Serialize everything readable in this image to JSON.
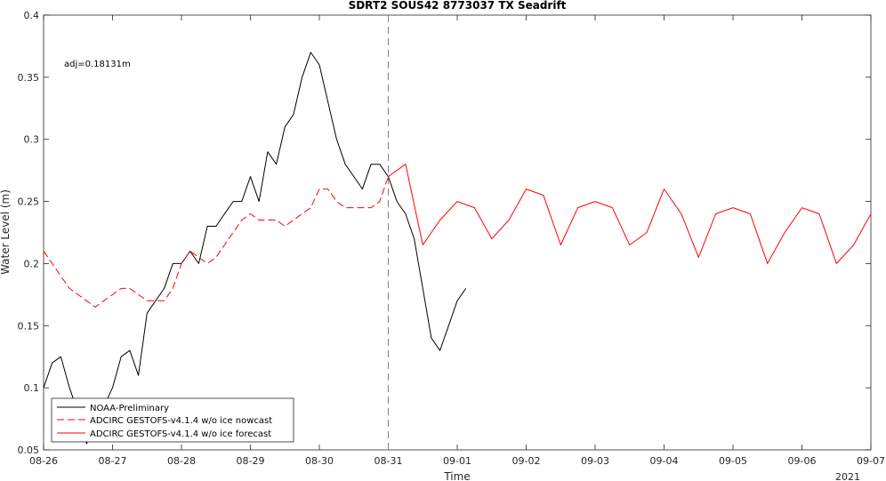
{
  "chart_data": {
    "type": "line",
    "title": "SDRT2 SOUS42 8773037 TX Seadrift",
    "xlabel": "Time",
    "ylabel": "Water Level (m)",
    "year_label": "2021",
    "annotation": "adj=0.18131m",
    "xlim": [
      "08-26",
      "09-07"
    ],
    "ylim": [
      0.05,
      0.4
    ],
    "x_tick_labels": [
      "08-26",
      "08-27",
      "08-28",
      "08-29",
      "08-30",
      "08-31",
      "09-01",
      "09-02",
      "09-03",
      "09-04",
      "09-05",
      "09-06",
      "09-07"
    ],
    "y_tick_labels": [
      "0.05",
      "0.1",
      "0.15",
      "0.2",
      "0.25",
      "0.3",
      "0.35",
      "0.4"
    ],
    "vertical_marker": "08-31",
    "colors": {
      "observed": "#000000",
      "nowcast": "#ff0000",
      "forecast": "#ff0000",
      "marker": "#808080"
    },
    "series": [
      {
        "name": "NOAA-Preliminary",
        "style": "solid",
        "x": [
          "08-26 00:00",
          "08-26 03:00",
          "08-26 06:00",
          "08-26 09:00",
          "08-26 12:00",
          "08-26 15:00",
          "08-26 18:00",
          "08-26 21:00",
          "08-27 00:00",
          "08-27 03:00",
          "08-27 06:00",
          "08-27 09:00",
          "08-27 12:00",
          "08-27 15:00",
          "08-27 18:00",
          "08-27 21:00",
          "08-28 00:00",
          "08-28 03:00",
          "08-28 06:00",
          "08-28 09:00",
          "08-28 12:00",
          "08-28 15:00",
          "08-28 18:00",
          "08-28 21:00",
          "08-29 00:00",
          "08-29 03:00",
          "08-29 06:00",
          "08-29 09:00",
          "08-29 12:00",
          "08-29 15:00",
          "08-29 18:00",
          "08-29 21:00",
          "08-30 00:00",
          "08-30 03:00",
          "08-30 06:00",
          "08-30 09:00",
          "08-30 12:00",
          "08-30 15:00",
          "08-30 18:00",
          "08-30 21:00",
          "08-31 00:00",
          "08-31 03:00",
          "08-31 06:00",
          "08-31 09:00",
          "08-31 12:00",
          "08-31 15:00",
          "08-31 18:00",
          "08-31 21:00",
          "09-01 00:00",
          "09-01 03:00"
        ],
        "values": [
          0.1,
          0.12,
          0.125,
          0.1,
          0.08,
          0.055,
          0.07,
          0.085,
          0.1,
          0.125,
          0.13,
          0.11,
          0.16,
          0.17,
          0.18,
          0.2,
          0.2,
          0.21,
          0.2,
          0.23,
          0.23,
          0.24,
          0.25,
          0.25,
          0.27,
          0.25,
          0.29,
          0.28,
          0.31,
          0.32,
          0.35,
          0.37,
          0.36,
          0.33,
          0.3,
          0.28,
          0.27,
          0.26,
          0.28,
          0.28,
          0.27,
          0.25,
          0.24,
          0.22,
          0.18,
          0.14,
          0.13,
          0.15,
          0.17,
          0.18
        ]
      },
      {
        "name": "ADCIRC GESTOFS-v4.1.4 w/o ice nowcast",
        "style": "dashed",
        "x": [
          "08-26 00:00",
          "08-26 03:00",
          "08-26 06:00",
          "08-26 09:00",
          "08-26 12:00",
          "08-26 15:00",
          "08-26 18:00",
          "08-26 21:00",
          "08-27 00:00",
          "08-27 03:00",
          "08-27 06:00",
          "08-27 09:00",
          "08-27 12:00",
          "08-27 15:00",
          "08-27 18:00",
          "08-27 21:00",
          "08-28 00:00",
          "08-28 03:00",
          "08-28 06:00",
          "08-28 09:00",
          "08-28 12:00",
          "08-28 15:00",
          "08-28 18:00",
          "08-28 21:00",
          "08-29 00:00",
          "08-29 03:00",
          "08-29 06:00",
          "08-29 09:00",
          "08-29 12:00",
          "08-29 15:00",
          "08-29 18:00",
          "08-29 21:00",
          "08-30 00:00",
          "08-30 03:00",
          "08-30 06:00",
          "08-30 09:00",
          "08-30 12:00",
          "08-30 15:00",
          "08-30 18:00",
          "08-30 21:00",
          "08-31 00:00"
        ],
        "values": [
          0.21,
          0.2,
          0.19,
          0.18,
          0.175,
          0.17,
          0.165,
          0.17,
          0.175,
          0.18,
          0.18,
          0.175,
          0.17,
          0.17,
          0.17,
          0.18,
          0.2,
          0.21,
          0.205,
          0.2,
          0.205,
          0.215,
          0.225,
          0.235,
          0.24,
          0.235,
          0.235,
          0.235,
          0.23,
          0.235,
          0.24,
          0.245,
          0.26,
          0.26,
          0.25,
          0.245,
          0.245,
          0.245,
          0.245,
          0.25,
          0.27
        ]
      },
      {
        "name": "ADCIRC GESTOFS-v4.1.4 w/o ice forecast",
        "style": "solid",
        "x": [
          "08-31 00:00",
          "08-31 06:00",
          "08-31 12:00",
          "08-31 18:00",
          "09-01 00:00",
          "09-01 06:00",
          "09-01 12:00",
          "09-01 18:00",
          "09-02 00:00",
          "09-02 06:00",
          "09-02 12:00",
          "09-02 18:00",
          "09-03 00:00",
          "09-03 06:00",
          "09-03 12:00",
          "09-03 18:00",
          "09-04 00:00",
          "09-04 06:00",
          "09-04 12:00",
          "09-04 18:00",
          "09-05 00:00",
          "09-05 06:00",
          "09-05 12:00",
          "09-05 18:00",
          "09-06 00:00",
          "09-06 06:00",
          "09-06 12:00",
          "09-06 18:00",
          "09-07 00:00"
        ],
        "values": [
          0.27,
          0.28,
          0.215,
          0.235,
          0.25,
          0.245,
          0.22,
          0.235,
          0.26,
          0.255,
          0.215,
          0.245,
          0.25,
          0.245,
          0.215,
          0.225,
          0.26,
          0.24,
          0.205,
          0.24,
          0.245,
          0.24,
          0.2,
          0.225,
          0.245,
          0.24,
          0.2,
          0.215,
          0.24
        ]
      }
    ],
    "legend_position": "bottom-left"
  }
}
